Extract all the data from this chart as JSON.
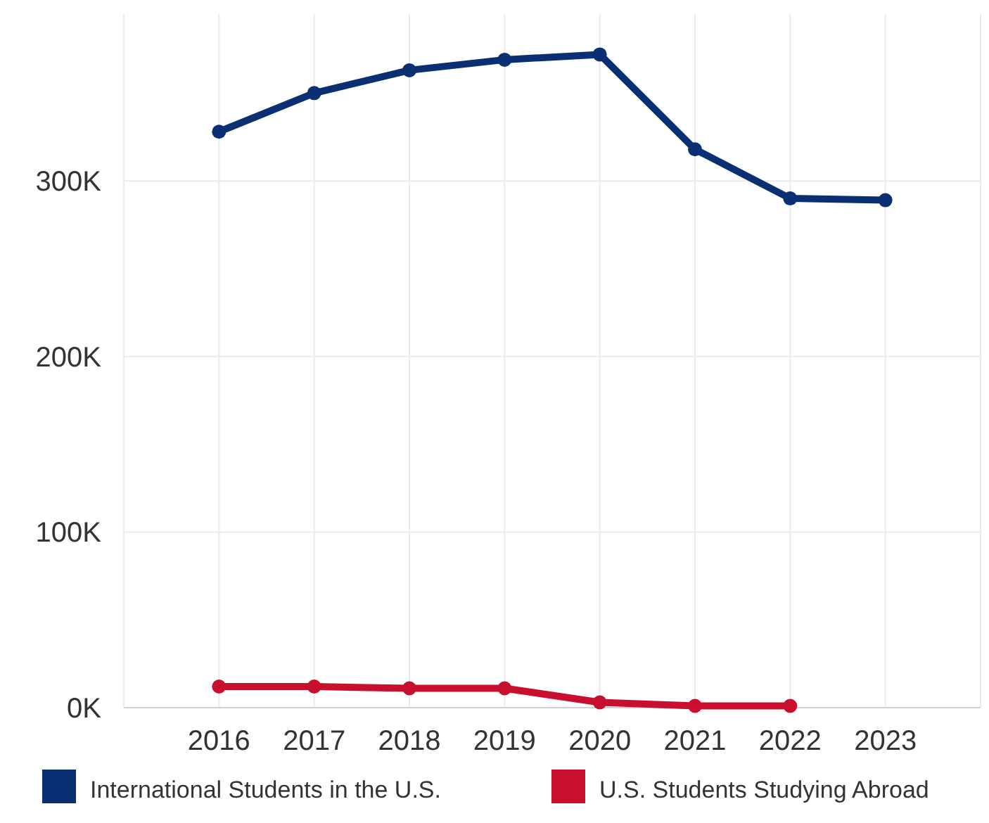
{
  "chart_data": {
    "type": "line",
    "x": [
      2016,
      2017,
      2018,
      2019,
      2020,
      2021,
      2022,
      2023
    ],
    "series": [
      {
        "name": "International Students in the U.S.",
        "color": "#0a2f73",
        "values": [
          328000,
          350000,
          363000,
          369000,
          372000,
          318000,
          290000,
          289000
        ]
      },
      {
        "name": "U.S. Students Studying Abroad",
        "color": "#c8102e",
        "values": [
          12000,
          12000,
          11000,
          11000,
          3000,
          1000,
          1000,
          null
        ]
      }
    ],
    "xlim": [
      2015,
      2024
    ],
    "xticks": [
      {
        "value": 2015,
        "label": null
      },
      2016,
      2017,
      2018,
      2019,
      2020,
      2021,
      2022,
      2023,
      {
        "value": 2024,
        "label": null
      }
    ],
    "ylim": [
      0,
      395000
    ],
    "yticks": [
      {
        "value": 0,
        "label": "0K"
      },
      {
        "value": 100000,
        "label": "100K"
      },
      {
        "value": 200000,
        "label": "200K"
      },
      {
        "value": 300000,
        "label": "300K"
      }
    ],
    "grid": true,
    "legend": "bottom",
    "marker": "circle",
    "line_style": "solid"
  }
}
